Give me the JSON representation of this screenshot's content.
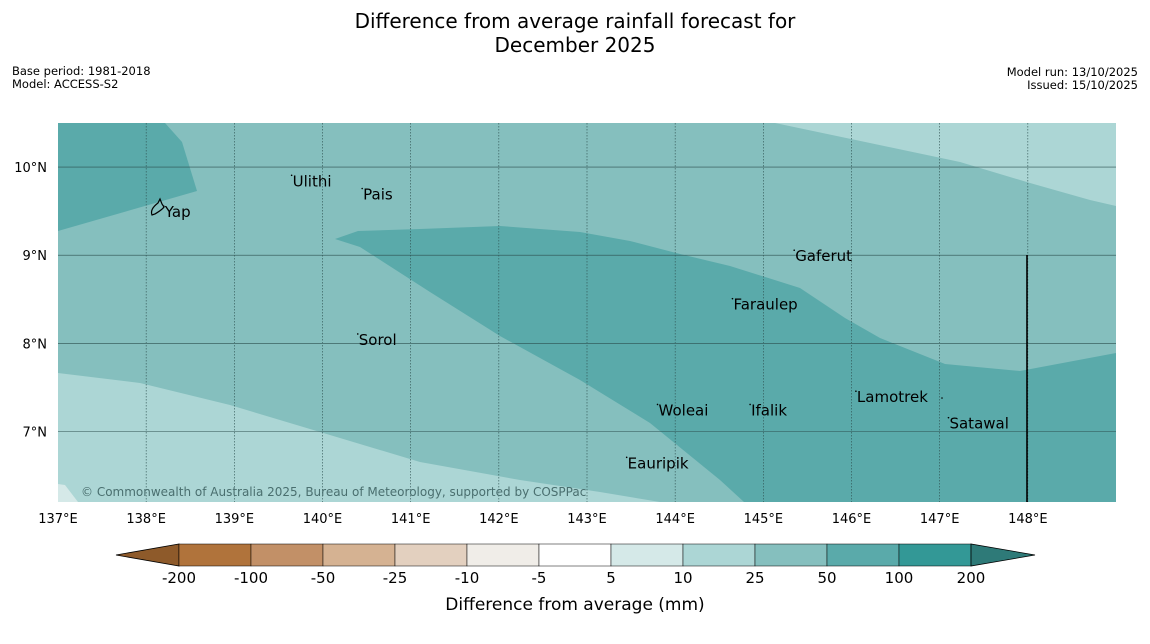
{
  "title_line1": "Difference from average rainfall forecast for",
  "title_line2": "December 2025",
  "base_period": "Base period: 1981-2018",
  "model": "Model: ACCESS-S2",
  "model_run": "Model run: 13/10/2025",
  "issued": "Issued: 15/10/2025",
  "copyright": "© Commonwealth of Australia 2025, Bureau of Meteorology, supported by COSPPac",
  "map": {
    "lon_range": [
      137,
      149
    ],
    "lat_range": [
      6.2,
      10.5
    ],
    "lon_ticks": [
      "137°E",
      "138°E",
      "139°E",
      "140°E",
      "141°E",
      "142°E",
      "143°E",
      "144°E",
      "145°E",
      "146°E",
      "147°E",
      "148°E"
    ],
    "lat_ticks": [
      "10°N",
      "9°N",
      "8°N",
      "7°N"
    ],
    "places": [
      {
        "name": "Yap",
        "lon": 138.2,
        "lat": 9.5
      },
      {
        "name": "Ulithi",
        "lon": 139.65,
        "lat": 9.85
      },
      {
        "name": "Pais",
        "lon": 140.45,
        "lat": 9.7
      },
      {
        "name": "Gaferut",
        "lon": 145.35,
        "lat": 9.0
      },
      {
        "name": "Faraulep",
        "lon": 144.65,
        "lat": 8.45
      },
      {
        "name": "Sorol",
        "lon": 140.4,
        "lat": 8.05
      },
      {
        "name": "Woleai",
        "lon": 143.8,
        "lat": 7.25
      },
      {
        "name": "Ifalik",
        "lon": 144.85,
        "lat": 7.25
      },
      {
        "name": "Lamotrek",
        "lon": 146.05,
        "lat": 7.4
      },
      {
        "name": "Satawal",
        "lon": 147.1,
        "lat": 7.1
      },
      {
        "name": "Eauripik",
        "lon": 143.45,
        "lat": 6.65
      }
    ]
  },
  "colorbar": {
    "label": "Difference from average (mm)",
    "ticks": [
      "-200",
      "-100",
      "-50",
      "-25",
      "-10",
      "-5",
      "5",
      "10",
      "25",
      "50",
      "100",
      "200"
    ],
    "colors": {
      "below_min": "#8e5a2a",
      "bins": [
        "#b0733b",
        "#c29067",
        "#d5b292",
        "#e3d0bf",
        "#f0ede8",
        "#ffffff",
        "#d5e9e8",
        "#acd6d5",
        "#85bfbe",
        "#5aaaaa",
        "#339896"
      ],
      "above_max": "#2e7a78"
    }
  }
}
